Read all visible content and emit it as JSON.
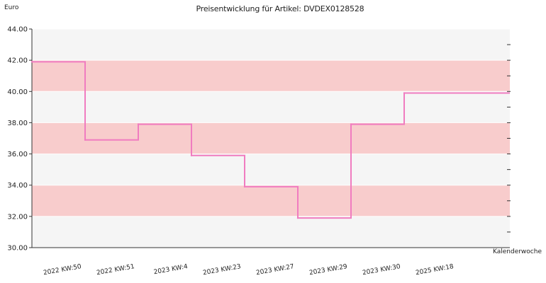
{
  "chart_data": {
    "type": "line",
    "step": "post",
    "title": "Preisentwicklung für Artikel: DVDEX0128528",
    "ylabel": "Euro",
    "xlabel": "Kalenderwoche",
    "ylim": [
      30,
      44
    ],
    "yticks": [
      "30.00",
      "32.00",
      "34.00",
      "36.00",
      "38.00",
      "40.00",
      "42.00",
      "44.00"
    ],
    "categories": [
      "2022 KW:50",
      "2022 KW:51",
      "2023 KW:4",
      "2023 KW:23",
      "2023 KW:27",
      "2023 KW:29",
      "2023 KW:30",
      "2025 KW:18"
    ],
    "series": [
      {
        "values": [
          41.9,
          36.9,
          37.9,
          35.9,
          33.9,
          31.9,
          37.9,
          39.9
        ]
      }
    ],
    "colors": {
      "line": "#f07cc0",
      "band_dark": "#f8cccc",
      "band_light": "#f5f5f5",
      "grid": "#ffffff",
      "axis": "#333333"
    },
    "grid": true
  }
}
